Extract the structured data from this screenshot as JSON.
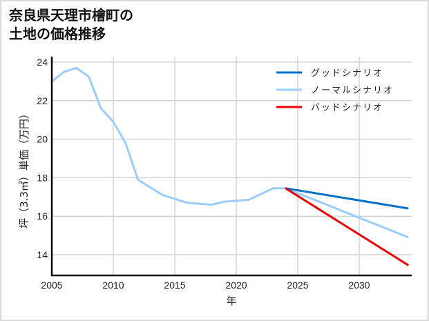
{
  "title_line1": "奈良県天理市檜町の",
  "title_line2": "土地の価格推移",
  "chart_data": {
    "type": "line",
    "title": "奈良県天理市檜町の土地の価格推移",
    "xlabel": "年",
    "ylabel": "坪（3.3㎡）単価（万円）",
    "xlim": [
      2005,
      2034
    ],
    "ylim": [
      13,
      24.3
    ],
    "x_ticks": [
      2005,
      2010,
      2015,
      2020,
      2025,
      2030
    ],
    "y_ticks": [
      14,
      16,
      18,
      20,
      22,
      24
    ],
    "grid": true,
    "legend_position": "upper right",
    "series": [
      {
        "name": "グッドシナリオ",
        "color": "#0070c9",
        "x": [
          2024,
          2034
        ],
        "values": [
          17.45,
          16.4
        ]
      },
      {
        "name": "ノーマルシナリオ",
        "color": "#99ccff",
        "x": [
          2005,
          2006,
          2007,
          2008,
          2009,
          2010,
          2011,
          2012,
          2013,
          2014,
          2015,
          2016,
          2017,
          2018,
          2019,
          2020,
          2021,
          2022,
          2023,
          2024,
          2034
        ],
        "values": [
          23.0,
          23.5,
          23.7,
          23.25,
          21.6,
          20.9,
          19.8,
          17.9,
          17.5,
          17.1,
          16.9,
          16.7,
          16.65,
          16.6,
          16.75,
          16.8,
          16.85,
          17.15,
          17.45,
          17.45,
          14.9
        ]
      },
      {
        "name": "バッドシナリオ",
        "color": "#ee0000",
        "x": [
          2024,
          2034
        ],
        "values": [
          17.45,
          13.45
        ]
      }
    ]
  },
  "axis": {
    "x_label": "年",
    "y_label": "坪（3.3㎡）単価（万円）",
    "x_tick_labels": [
      "2005",
      "2010",
      "2015",
      "2020",
      "2025",
      "2030"
    ],
    "y_tick_labels": [
      "24",
      "22",
      "20",
      "18",
      "16",
      "14"
    ]
  },
  "legend": [
    {
      "label": "グッドシナリオ",
      "color": "#0070c9"
    },
    {
      "label": "ノーマルシナリオ",
      "color": "#99ccff"
    },
    {
      "label": "バッドシナリオ",
      "color": "#ee0000"
    }
  ]
}
